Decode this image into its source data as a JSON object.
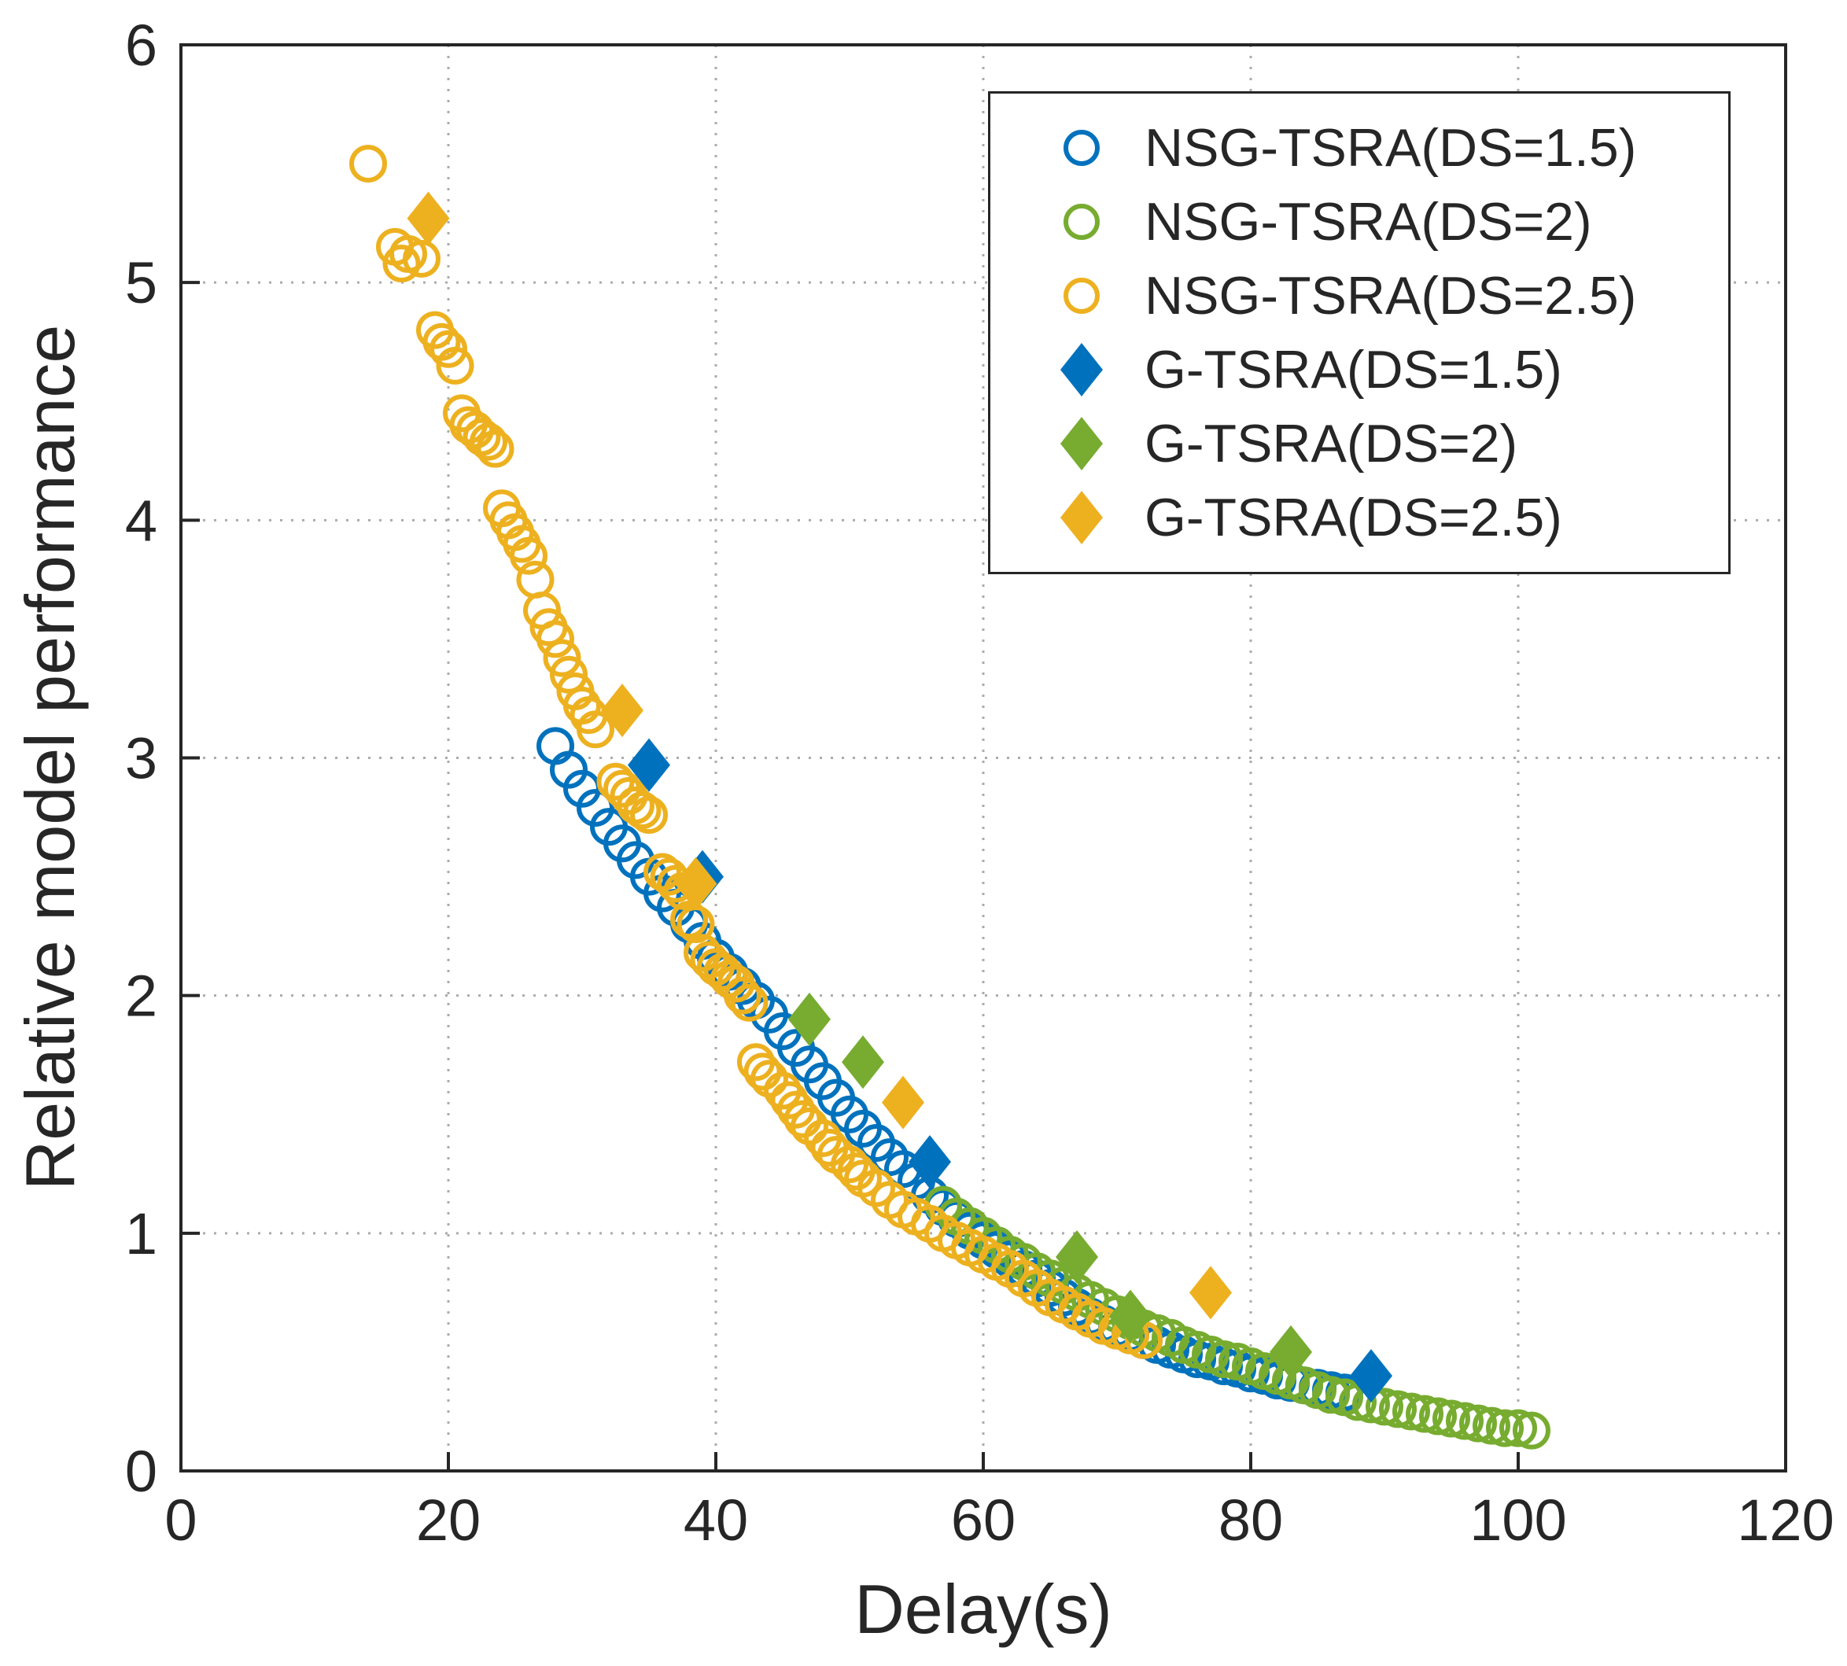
{
  "style": {
    "background": "#ffffff",
    "axis_color": "#262626",
    "grid_color": "#ababab"
  },
  "chart_data": {
    "type": "scatter",
    "title": "",
    "xlabel": "Delay(s)",
    "ylabel": "Relative model performance",
    "xlim": [
      0,
      120
    ],
    "ylim": [
      0,
      6
    ],
    "xticks": [
      0,
      20,
      40,
      60,
      80,
      100,
      120
    ],
    "yticks": [
      0,
      1,
      2,
      3,
      4,
      5,
      6
    ],
    "grid": "dotted",
    "legend_position": "top-right",
    "series": [
      {
        "name": "NSG-TSRA(DS=1.5)",
        "marker": "circle",
        "color": "#0072BD",
        "points": [
          [
            28,
            3.05
          ],
          [
            29,
            2.95
          ],
          [
            30,
            2.87
          ],
          [
            31,
            2.79
          ],
          [
            32,
            2.71
          ],
          [
            33,
            2.64
          ],
          [
            34,
            2.57
          ],
          [
            35,
            2.5
          ],
          [
            36,
            2.43
          ],
          [
            37,
            2.37
          ],
          [
            38,
            2.3
          ],
          [
            39,
            2.23
          ],
          [
            40,
            2.16
          ],
          [
            41,
            2.1
          ],
          [
            42,
            2.04
          ],
          [
            43,
            1.98
          ],
          [
            44,
            1.92
          ],
          [
            45,
            1.85
          ],
          [
            46,
            1.78
          ],
          [
            47,
            1.71
          ],
          [
            48,
            1.64
          ],
          [
            49,
            1.57
          ],
          [
            50,
            1.5
          ],
          [
            51,
            1.44
          ],
          [
            52,
            1.38
          ],
          [
            53,
            1.32
          ],
          [
            54,
            1.27
          ],
          [
            55,
            1.22
          ],
          [
            56,
            1.16
          ],
          [
            57,
            1.11
          ],
          [
            58,
            1.06
          ],
          [
            59,
            1.01
          ],
          [
            60,
            0.97
          ],
          [
            61,
            0.93
          ],
          [
            62,
            0.89
          ],
          [
            63,
            0.85
          ],
          [
            64,
            0.81
          ],
          [
            65,
            0.77
          ],
          [
            66,
            0.73
          ],
          [
            67,
            0.69
          ],
          [
            68,
            0.65
          ],
          [
            69,
            0.62
          ],
          [
            70,
            0.6
          ],
          [
            71,
            0.58
          ],
          [
            72,
            0.55
          ],
          [
            73,
            0.53
          ],
          [
            74,
            0.51
          ],
          [
            75,
            0.49
          ],
          [
            76,
            0.47
          ],
          [
            77,
            0.46
          ],
          [
            78,
            0.44
          ],
          [
            79,
            0.43
          ],
          [
            80,
            0.41
          ],
          [
            81,
            0.4
          ],
          [
            82,
            0.38
          ],
          [
            83,
            0.37
          ],
          [
            84,
            0.36
          ],
          [
            85,
            0.35
          ],
          [
            86,
            0.34
          ],
          [
            87,
            0.33
          ]
        ]
      },
      {
        "name": "NSG-TSRA(DS=2)",
        "marker": "circle",
        "color": "#77AC30",
        "points": [
          [
            57,
            1.12
          ],
          [
            58,
            1.07
          ],
          [
            59,
            1.03
          ],
          [
            60,
            0.99
          ],
          [
            61,
            0.95
          ],
          [
            62,
            0.91
          ],
          [
            63,
            0.88
          ],
          [
            64,
            0.84
          ],
          [
            65,
            0.81
          ],
          [
            66,
            0.78
          ],
          [
            67,
            0.75
          ],
          [
            68,
            0.72
          ],
          [
            69,
            0.69
          ],
          [
            70,
            0.66
          ],
          [
            71,
            0.63
          ],
          [
            72,
            0.6
          ],
          [
            73,
            0.58
          ],
          [
            74,
            0.56
          ],
          [
            75,
            0.53
          ],
          [
            76,
            0.51
          ],
          [
            77,
            0.49
          ],
          [
            78,
            0.47
          ],
          [
            79,
            0.46
          ],
          [
            80,
            0.44
          ],
          [
            81,
            0.42
          ],
          [
            82,
            0.4
          ],
          [
            83,
            0.38
          ],
          [
            84,
            0.36
          ],
          [
            85,
            0.34
          ],
          [
            86,
            0.32
          ],
          [
            87,
            0.31
          ],
          [
            88,
            0.29
          ],
          [
            89,
            0.28
          ],
          [
            90,
            0.27
          ],
          [
            91,
            0.26
          ],
          [
            92,
            0.25
          ],
          [
            93,
            0.24
          ],
          [
            94,
            0.23
          ],
          [
            95,
            0.22
          ],
          [
            96,
            0.21
          ],
          [
            97,
            0.2
          ],
          [
            98,
            0.19
          ],
          [
            99,
            0.18
          ],
          [
            100,
            0.18
          ],
          [
            101,
            0.17
          ]
        ]
      },
      {
        "name": "NSG-TSRA(DS=2.5)",
        "marker": "circle",
        "color": "#EDB120",
        "points": [
          [
            14,
            5.5
          ],
          [
            16,
            5.15
          ],
          [
            16.5,
            5.08
          ],
          [
            17,
            5.12
          ],
          [
            18,
            5.1
          ],
          [
            19,
            4.8
          ],
          [
            19.5,
            4.75
          ],
          [
            20,
            4.72
          ],
          [
            20.5,
            4.65
          ],
          [
            21,
            4.45
          ],
          [
            21.5,
            4.4
          ],
          [
            22,
            4.38
          ],
          [
            22.5,
            4.35
          ],
          [
            23,
            4.33
          ],
          [
            23.5,
            4.3
          ],
          [
            24,
            4.05
          ],
          [
            24.5,
            4.0
          ],
          [
            25,
            3.95
          ],
          [
            25.5,
            3.9
          ],
          [
            26,
            3.85
          ],
          [
            26.5,
            3.75
          ],
          [
            27,
            3.62
          ],
          [
            27.5,
            3.55
          ],
          [
            28,
            3.5
          ],
          [
            28.5,
            3.42
          ],
          [
            29,
            3.35
          ],
          [
            29.5,
            3.28
          ],
          [
            30,
            3.22
          ],
          [
            30.5,
            3.18
          ],
          [
            31,
            3.12
          ],
          [
            32.5,
            2.9
          ],
          [
            33,
            2.87
          ],
          [
            33.5,
            2.84
          ],
          [
            34,
            2.8
          ],
          [
            34.5,
            2.78
          ],
          [
            35,
            2.76
          ],
          [
            36,
            2.52
          ],
          [
            36.5,
            2.5
          ],
          [
            37,
            2.47
          ],
          [
            37.5,
            2.44
          ],
          [
            38,
            2.32
          ],
          [
            38.5,
            2.3
          ],
          [
            39,
            2.18
          ],
          [
            39.5,
            2.15
          ],
          [
            40,
            2.12
          ],
          [
            40.5,
            2.1
          ],
          [
            41,
            2.07
          ],
          [
            41.5,
            2.05
          ],
          [
            42,
            2.0
          ],
          [
            42.5,
            1.97
          ],
          [
            43,
            1.72
          ],
          [
            43.5,
            1.68
          ],
          [
            44,
            1.65
          ],
          [
            45,
            1.6
          ],
          [
            45.5,
            1.56
          ],
          [
            46,
            1.52
          ],
          [
            46.5,
            1.48
          ],
          [
            47,
            1.45
          ],
          [
            48,
            1.4
          ],
          [
            48.5,
            1.36
          ],
          [
            49,
            1.33
          ],
          [
            50,
            1.29
          ],
          [
            50.5,
            1.26
          ],
          [
            51,
            1.23
          ],
          [
            52,
            1.19
          ],
          [
            53,
            1.14
          ],
          [
            54,
            1.1
          ],
          [
            55,
            1.07
          ],
          [
            56,
            1.04
          ],
          [
            57,
            1.0
          ],
          [
            58,
            0.97
          ],
          [
            59,
            0.94
          ],
          [
            60,
            0.91
          ],
          [
            61,
            0.88
          ],
          [
            62,
            0.85
          ],
          [
            63,
            0.81
          ],
          [
            64,
            0.77
          ],
          [
            65,
            0.73
          ],
          [
            66,
            0.7
          ],
          [
            67,
            0.67
          ],
          [
            68,
            0.64
          ],
          [
            69,
            0.61
          ],
          [
            70,
            0.59
          ],
          [
            71,
            0.57
          ],
          [
            72,
            0.55
          ]
        ]
      },
      {
        "name": "G-TSRA(DS=1.5)",
        "marker": "diamond",
        "color": "#0072BD",
        "points": [
          [
            35,
            2.97
          ],
          [
            39,
            2.5
          ],
          [
            56,
            1.3
          ],
          [
            89,
            0.4
          ]
        ]
      },
      {
        "name": "G-TSRA(DS=2)",
        "marker": "diamond",
        "color": "#77AC30",
        "points": [
          [
            47,
            1.9
          ],
          [
            51,
            1.72
          ],
          [
            67,
            0.9
          ],
          [
            71,
            0.65
          ],
          [
            83,
            0.5
          ]
        ]
      },
      {
        "name": "G-TSRA(DS=2.5)",
        "marker": "diamond",
        "color": "#EDB120",
        "points": [
          [
            18.5,
            5.27
          ],
          [
            33,
            3.2
          ],
          [
            38.5,
            2.47
          ],
          [
            54,
            1.55
          ],
          [
            77,
            0.75
          ]
        ]
      }
    ]
  }
}
